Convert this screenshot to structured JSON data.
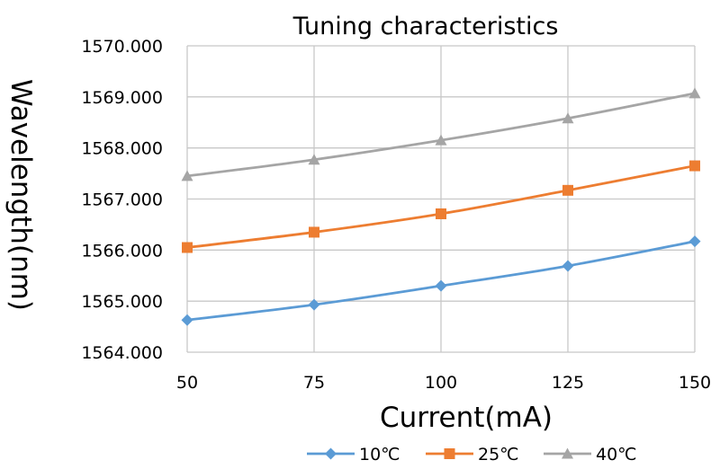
{
  "chart_data": {
    "type": "line",
    "title": "Tuning characteristics",
    "xlabel": "Current(mA)",
    "ylabel": "Wavelength(nm)",
    "x": [
      50,
      75,
      100,
      125,
      150
    ],
    "x_tick_labels": [
      "50",
      "75",
      "100",
      "125",
      "150"
    ],
    "y_tick_labels": [
      "1564.000",
      "1565.000",
      "1566.000",
      "1567.000",
      "1568.000",
      "1569.000",
      "1570.000"
    ],
    "ylim": [
      1564,
      1570
    ],
    "grid": true,
    "legend_position": "bottom",
    "series": [
      {
        "name": "10℃",
        "color": "#5b9bd5",
        "marker": "diamond",
        "values": [
          1564.63,
          1564.93,
          1565.3,
          1565.69,
          1566.17
        ]
      },
      {
        "name": "25℃",
        "color": "#ed7d31",
        "marker": "square",
        "values": [
          1566.05,
          1566.35,
          1566.71,
          1567.17,
          1567.65
        ]
      },
      {
        "name": "40℃",
        "color": "#a5a5a5",
        "marker": "triangle",
        "values": [
          1567.45,
          1567.77,
          1568.15,
          1568.58,
          1569.07
        ]
      }
    ]
  }
}
